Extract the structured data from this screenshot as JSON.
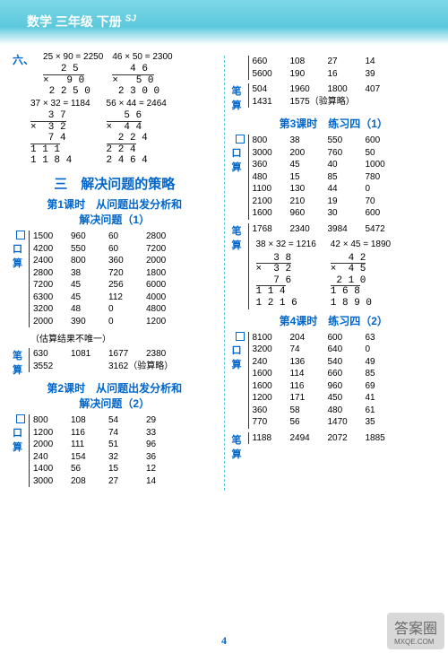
{
  "header": {
    "text": "数学 三年级 下册",
    "badge": "SJ"
  },
  "left": {
    "six_label": "六、",
    "calc1": {
      "eq": "25 × 90 = 2250",
      "lines": [
        "   2 5",
        "×   9 0",
        " 2 2 5 0"
      ]
    },
    "calc2": {
      "eq": "46 × 50 = 2300",
      "lines": [
        "   4 6",
        "×   5 0",
        " 2 3 0 0"
      ]
    },
    "calc3": {
      "eq": "37 × 32 = 1184",
      "lines": [
        "   3 7",
        "×  3 2",
        "   7 4",
        "1 1 1",
        "1 1 8 4"
      ]
    },
    "calc4": {
      "eq": "56 × 44 = 2464",
      "lines": [
        "   5 6",
        "×  4 4",
        "  2 2 4",
        "2 2 4",
        "2 4 6 4"
      ]
    },
    "section3": "三　解决问题的策略",
    "lesson1_a": "第1课时　从问题出发分析和",
    "lesson1_b": "解决问题（1）",
    "oral1_label": "口算",
    "oral1": [
      [
        "1500",
        "960",
        "60",
        "2800"
      ],
      [
        "4200",
        "550",
        "60",
        "7200"
      ],
      [
        "2400",
        "800",
        "360",
        "2000"
      ],
      [
        "2800",
        "38",
        "720",
        "1800"
      ],
      [
        "7200",
        "45",
        "256",
        "6000"
      ],
      [
        "6300",
        "45",
        "112",
        "4000"
      ],
      [
        "3200",
        "48",
        "0",
        "4800"
      ],
      [
        "2000",
        "390",
        "0",
        "1200"
      ]
    ],
    "note1": "（估算结果不唯一）",
    "pen1_label": "笔算",
    "pen1_r1": [
      "630",
      "1081",
      "1677",
      "2380"
    ],
    "pen1_r2": [
      "3552",
      "",
      "3162（验算略）",
      ""
    ],
    "lesson2_a": "第2课时　从问题出发分析和",
    "lesson2_b": "解决问题（2）",
    "oral2_label": "口算",
    "oral2": [
      [
        "800",
        "108",
        "54",
        "29"
      ],
      [
        "1200",
        "116",
        "74",
        "33"
      ],
      [
        "2000",
        "111",
        "51",
        "96"
      ],
      [
        "240",
        "154",
        "32",
        "36"
      ],
      [
        "1400",
        "56",
        "15",
        "12"
      ],
      [
        "3000",
        "208",
        "27",
        "14"
      ]
    ]
  },
  "right": {
    "cont_rows": [
      [
        "660",
        "108",
        "27",
        "14"
      ],
      [
        "5600",
        "190",
        "16",
        "39"
      ]
    ],
    "pen2_label": "笔算",
    "pen2_r1": [
      "504",
      "1960",
      "1800",
      "407"
    ],
    "pen2_r2": [
      "1431",
      "1575（验算略）",
      "",
      ""
    ],
    "lesson3": "第3课时　练习四（1）",
    "oral3_label": "口算",
    "oral3": [
      [
        "800",
        "38",
        "550",
        "600"
      ],
      [
        "3000",
        "200",
        "760",
        "50"
      ],
      [
        "360",
        "45",
        "40",
        "1000"
      ],
      [
        "480",
        "15",
        "85",
        "780"
      ],
      [
        "1100",
        "130",
        "44",
        "0"
      ],
      [
        "2100",
        "210",
        "19",
        "70"
      ],
      [
        "1600",
        "960",
        "30",
        "600"
      ]
    ],
    "pen3_label": "笔算",
    "pen3_r": [
      "1768",
      "2340",
      "3984",
      "5472"
    ],
    "calc5": {
      "eq": "38 × 32 = 1216",
      "lines": [
        "   3 8",
        "×  3 2",
        "   7 6",
        "1 1 4",
        "1 2 1 6"
      ]
    },
    "calc6": {
      "eq": "42 × 45 = 1890",
      "lines": [
        "   4 2",
        "×  4 5",
        " 2 1 0",
        "1 6 8",
        "1 8 9 0"
      ]
    },
    "lesson4": "第4课时　练习四（2）",
    "oral4_label": "口算",
    "oral4": [
      [
        "8100",
        "204",
        "600",
        "63"
      ],
      [
        "3200",
        "74",
        "640",
        "0"
      ],
      [
        "240",
        "136",
        "540",
        "49"
      ],
      [
        "1600",
        "114",
        "660",
        "85"
      ],
      [
        "1600",
        "116",
        "960",
        "69"
      ],
      [
        "1200",
        "171",
        "450",
        "41"
      ],
      [
        "360",
        "58",
        "480",
        "61"
      ],
      [
        "770",
        "56",
        "1470",
        "35"
      ]
    ],
    "pen4_label": "笔算",
    "pen4_r": [
      "1188",
      "2494",
      "2072",
      "1885"
    ]
  },
  "page_num": "4",
  "watermark": {
    "main": "答案圈",
    "sub": "MXQE.COM"
  }
}
